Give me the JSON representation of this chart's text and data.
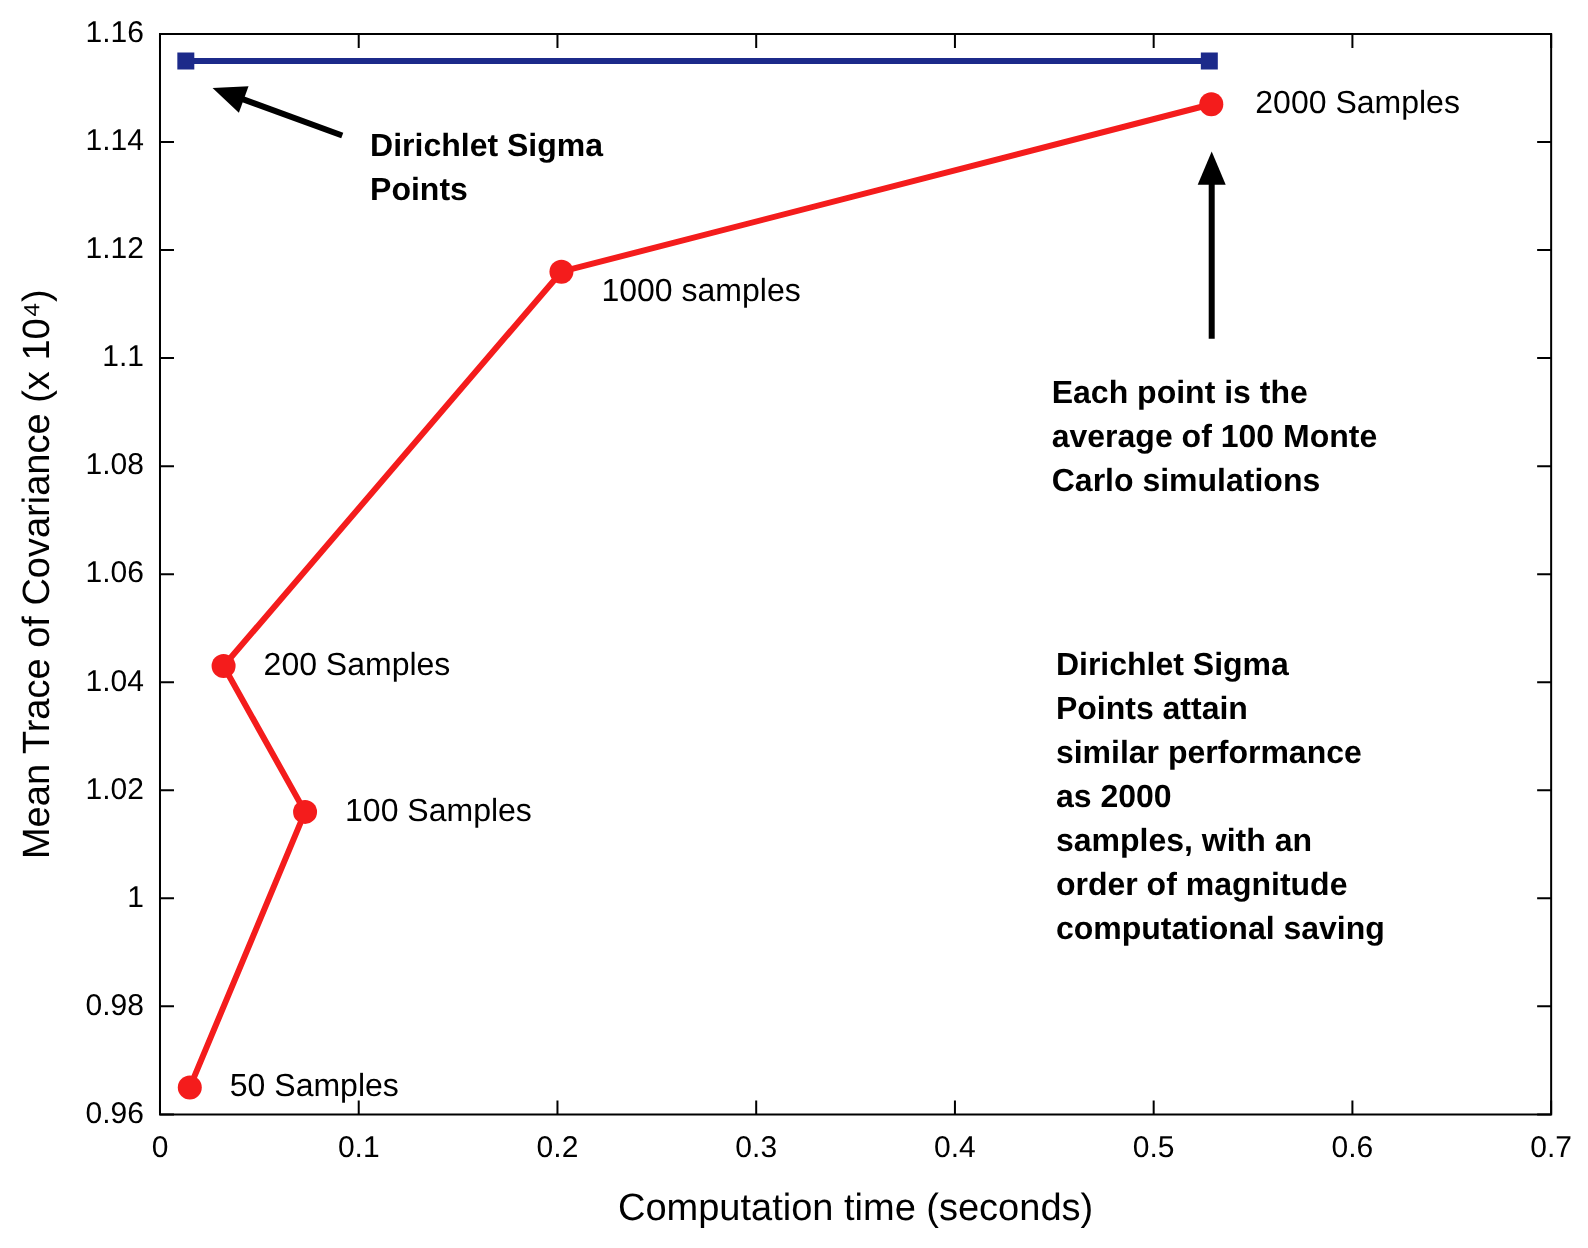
{
  "chart_data": {
    "type": "line",
    "xlabel": "Computation time (seconds)",
    "ylabel": "Mean Trace of Covariance (x 10⁴)",
    "xlim": [
      0,
      0.7
    ],
    "xticks": [
      0,
      0.1,
      0.2,
      0.3,
      0.4,
      0.5,
      0.6,
      0.7
    ],
    "ylim": [
      0.96,
      1.16
    ],
    "yticks": [
      0.96,
      0.98,
      1,
      1.02,
      1.04,
      1.06,
      1.08,
      1.1,
      1.12,
      1.14,
      1.16
    ],
    "legend": false,
    "grid": false,
    "line_style": "solid",
    "series": [
      {
        "color": "#1c2a8a",
        "marker": "square",
        "x": [
          0.013,
          0.528
        ],
        "values": [
          1.155,
          1.155
        ]
      },
      {
        "color": "#f41c1c",
        "marker": "circle",
        "x": [
          0.015,
          0.073,
          0.032,
          0.202,
          0.529
        ],
        "values": [
          0.965,
          1.016,
          1.043,
          1.116,
          1.147
        ]
      }
    ],
    "annotations": [
      "Dirichlet Sigma\nPoints",
      "Each point is the\naverage of 100 Monte\nCarlo simulations",
      {
        "text": "50 Samples",
        "x": 0.015,
        "y": 0.965
      },
      {
        "text": "100 Samples",
        "x": 0.073,
        "y": 1.016
      },
      {
        "text": "200 Samples",
        "x": 0.032,
        "y": 1.043
      },
      {
        "text": "1000 samples",
        "x": 0.202,
        "y": 1.116
      },
      {
        "text": "2000 Samples",
        "x": 0.529,
        "y": 1.147
      },
      "Dirichlet Sigma\nPoints attain\nsimilar performance\nas 2000\nsamples, with an\norder of magnitude\ncomputational saving"
    ]
  }
}
